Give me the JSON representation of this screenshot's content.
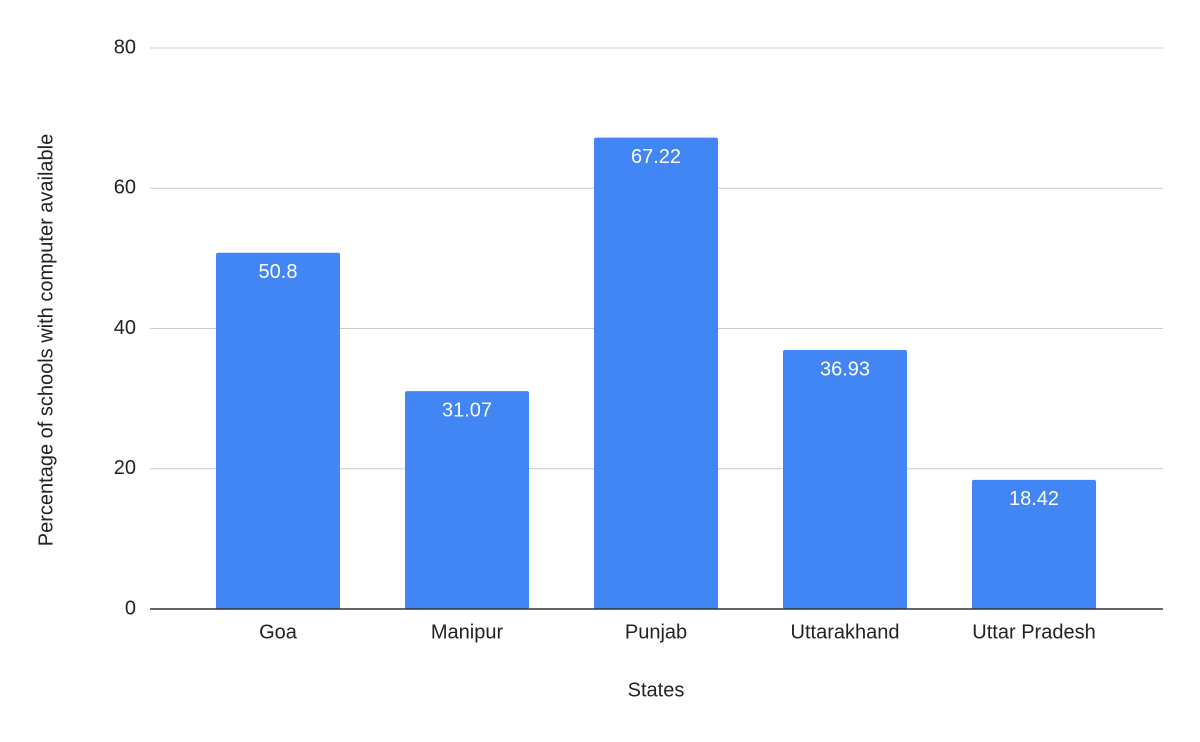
{
  "chart_data": {
    "type": "bar",
    "categories": [
      "Goa",
      "Manipur",
      "Punjab",
      "Uttarakhand",
      "Uttar Pradesh"
    ],
    "values": [
      50.8,
      31.07,
      67.22,
      36.93,
      18.42
    ],
    "color": "#4285f4",
    "ylim": [
      0,
      80
    ],
    "yticks": [
      0,
      20,
      40,
      60,
      80
    ],
    "grid": true,
    "x_label": "States",
    "y_label": "Percentage of schools with computer available"
  }
}
